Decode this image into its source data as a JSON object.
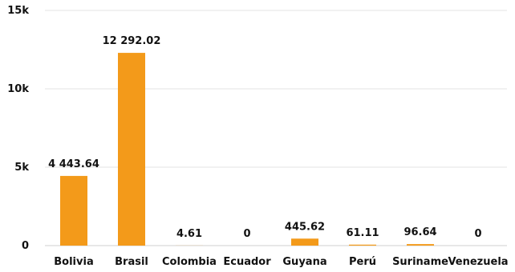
{
  "chart_data": {
    "type": "bar",
    "categories": [
      "Bolivia",
      "Brasil",
      "Colombia",
      "Ecuador",
      "Guyana",
      "Perú",
      "Suriname",
      "Venezuela"
    ],
    "values": [
      4443.64,
      12292.02,
      4.61,
      0,
      445.62,
      61.11,
      96.64,
      0
    ],
    "value_labels": [
      "4 443.64",
      "12 292.02",
      "4.61",
      "0",
      "445.62",
      "61.11",
      "96.64",
      "0"
    ],
    "ylim": [
      0,
      15000
    ],
    "yticks": [
      0,
      5000,
      10000,
      15000
    ],
    "ytick_labels": [
      "0",
      "5k",
      "10k",
      "15k"
    ],
    "grid": true,
    "legend": "none",
    "bar_color": "#f39a1a"
  }
}
